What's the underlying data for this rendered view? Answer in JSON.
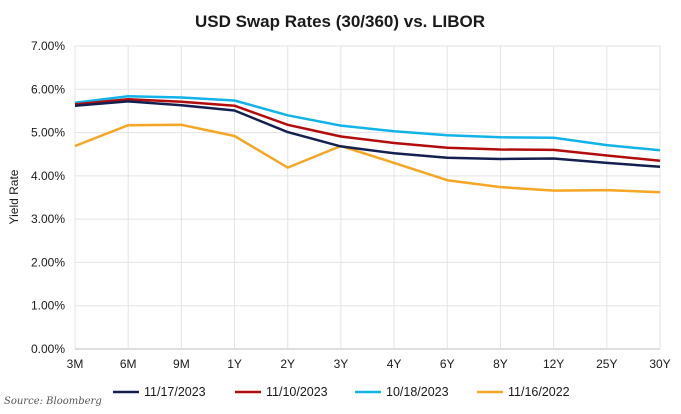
{
  "chart_data": {
    "type": "line",
    "title": "USD Swap Rates (30/360) vs. LIBOR",
    "ylabel": "Yield Rate",
    "xlabel": "",
    "categories": [
      "3M",
      "6M",
      "9M",
      "1Y",
      "2Y",
      "3Y",
      "4Y",
      "6Y",
      "8Y",
      "12Y",
      "25Y",
      "30Y"
    ],
    "ylim": [
      0,
      7
    ],
    "yticks": [
      "0.00%",
      "1.00%",
      "2.00%",
      "3.00%",
      "4.00%",
      "5.00%",
      "6.00%",
      "7.00%"
    ],
    "grid": true,
    "legend_position": "bottom",
    "series": [
      {
        "name": "11/17/2023",
        "color": "#14204f",
        "values": [
          5.62,
          5.72,
          5.63,
          5.51,
          5.01,
          4.68,
          4.52,
          4.42,
          4.39,
          4.4,
          4.3,
          4.21
        ]
      },
      {
        "name": "11/10/2023",
        "color": "#b30c0c",
        "values": [
          5.65,
          5.77,
          5.71,
          5.62,
          5.18,
          4.91,
          4.76,
          4.65,
          4.61,
          4.6,
          4.47,
          4.35
        ]
      },
      {
        "name": "10/18/2023",
        "color": "#12b3e8",
        "values": [
          5.69,
          5.84,
          5.81,
          5.74,
          5.4,
          5.16,
          5.03,
          4.94,
          4.89,
          4.88,
          4.71,
          4.59
        ]
      },
      {
        "name": "11/16/2022",
        "color": "#f5a623",
        "values": [
          4.69,
          5.17,
          5.18,
          4.92,
          4.19,
          4.69,
          4.3,
          3.9,
          3.74,
          3.66,
          3.67,
          3.62
        ]
      }
    ]
  },
  "source": "Source: Bloomberg"
}
